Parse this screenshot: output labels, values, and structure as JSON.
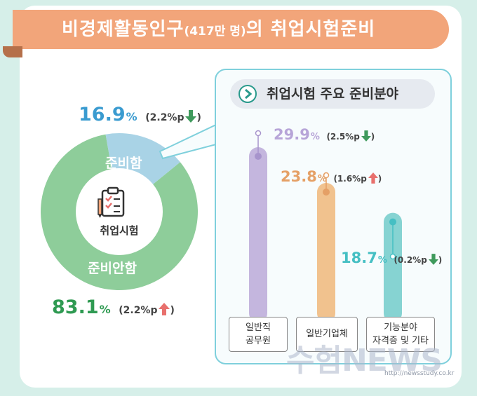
{
  "title": {
    "main_a": "비경제활동인구",
    "sub": "(417만 명)",
    "main_b": "의 취업시험준비"
  },
  "donut": {
    "center_label": "취업시험",
    "prepared_label": "준비함",
    "not_prepared_label": "준비안함",
    "prepared_value": "16.9",
    "prepared_change": "(2.2%p",
    "not_prepared_value": "83.1",
    "not_prepared_change": "(2.2%p",
    "percent_sign": "%",
    "close_paren": ")"
  },
  "panel": {
    "title": "취업시험 주요 준비분야"
  },
  "bars": [
    {
      "value_text": "29.9",
      "change_text": "(2.5%p",
      "label_1": "일반직",
      "label_2": "공무원"
    },
    {
      "value_text": "23.8",
      "change_text": "(1.6%p",
      "label_1": "일반기업체",
      "label_2": ""
    },
    {
      "value_text": "18.7",
      "change_text": "(0.2%p",
      "label_1": "기능분야",
      "label_2": "자격증 및 기타"
    }
  ],
  "watermark": {
    "text": "수험NEWS",
    "url": "http://newsstudy.co.kr"
  },
  "chart_data": [
    {
      "type": "pie",
      "categories": [
        "준비함",
        "준비안함"
      ],
      "values": [
        16.9,
        83.1
      ],
      "changes_pp": [
        -2.2,
        2.2
      ],
      "center_label": "취업시험",
      "colors": {
        "준비함": "#a9d3e6",
        "준비안함": "#8ecd9a"
      }
    },
    {
      "type": "bar",
      "title": "취업시험 주요 준비분야",
      "categories": [
        "일반직 공무원",
        "일반기업체",
        "기능분야 자격증 및 기타"
      ],
      "values": [
        29.9,
        23.8,
        18.7
      ],
      "changes_pp": [
        -2.5,
        1.6,
        -0.2
      ],
      "colors": [
        "#c4b6de",
        "#f1c28e",
        "#86d3d2"
      ]
    }
  ],
  "colors": {
    "prepared_text": "#3a9bd0",
    "not_prepared_text": "#2f9a52",
    "down_arrow": "#3f9a5c",
    "up_arrow": "#e8706d",
    "bar1_text": "#b7a5d8",
    "bar2_text": "#e5a066",
    "bar3_text": "#45bfc3"
  }
}
